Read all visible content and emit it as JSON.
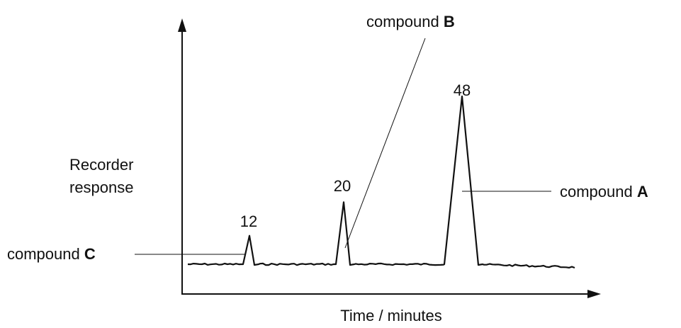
{
  "chart_data": {
    "type": "line",
    "xlabel": "Time / minutes",
    "ylabel_line1": "Recorder",
    "ylabel_line2": "response",
    "peaks": [
      {
        "time": 12,
        "time_label": "12",
        "compound_prefix": "compound ",
        "compound_letter": "C",
        "relative_height": 0.17
      },
      {
        "time": 20,
        "time_label": "20",
        "compound_prefix": "compound ",
        "compound_letter": "B",
        "relative_height": 0.37
      },
      {
        "time": 48,
        "time_label": "48",
        "compound_prefix": "compound ",
        "compound_letter": "A",
        "relative_height": 1.0
      }
    ]
  }
}
